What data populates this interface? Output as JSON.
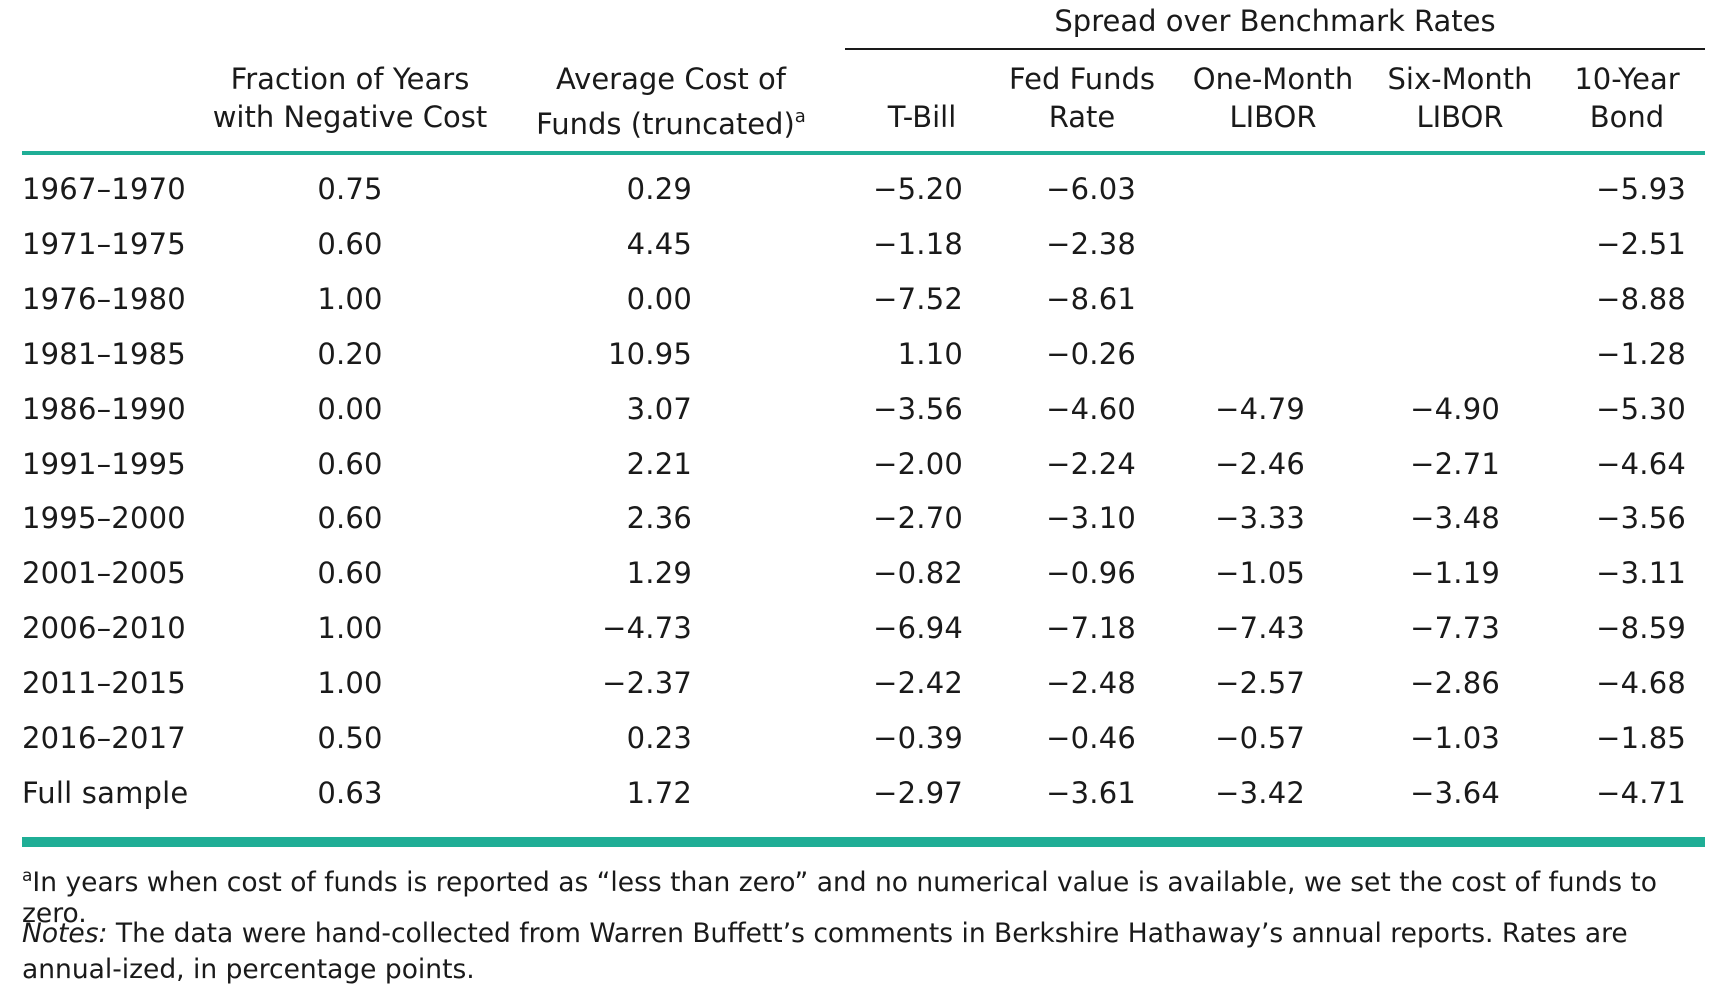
{
  "table": {
    "group_header": "Spread over Benchmark Rates",
    "columns": [
      {
        "line1": "Fraction of Years",
        "line2": "with Negative Cost"
      },
      {
        "line1": "Average Cost of",
        "line2": "Funds (truncated)",
        "sup": "a"
      },
      {
        "line1": "",
        "line2": "T-Bill"
      },
      {
        "line1": "Fed Funds",
        "line2": "Rate"
      },
      {
        "line1": "One-Month",
        "line2": "LIBOR"
      },
      {
        "line1": "Six-Month",
        "line2": "LIBOR"
      },
      {
        "line1": "10-Year",
        "line2": "Bond"
      }
    ],
    "rows": [
      [
        "1967–1970",
        "0.75",
        "0.29",
        "−5.20",
        "−6.03",
        "",
        "",
        "−5.93"
      ],
      [
        "1971–1975",
        "0.60",
        "4.45",
        "−1.18",
        "−2.38",
        "",
        "",
        "−2.51"
      ],
      [
        "1976–1980",
        "1.00",
        "0.00",
        "−7.52",
        "−8.61",
        "",
        "",
        "−8.88"
      ],
      [
        "1981–1985",
        "0.20",
        "10.95",
        "1.10",
        "−0.26",
        "",
        "",
        "−1.28"
      ],
      [
        "1986–1990",
        "0.00",
        "3.07",
        "−3.56",
        "−4.60",
        "−4.79",
        "−4.90",
        "−5.30"
      ],
      [
        "1991–1995",
        "0.60",
        "2.21",
        "−2.00",
        "−2.24",
        "−2.46",
        "−2.71",
        "−4.64"
      ],
      [
        "1995–2000",
        "0.60",
        "2.36",
        "−2.70",
        "−3.10",
        "−3.33",
        "−3.48",
        "−3.56"
      ],
      [
        "2001–2005",
        "0.60",
        "1.29",
        "−0.82",
        "−0.96",
        "−1.05",
        "−1.19",
        "−3.11"
      ],
      [
        "2006–2010",
        "1.00",
        "−4.73",
        "−6.94",
        "−7.18",
        "−7.43",
        "−7.73",
        "−8.59"
      ],
      [
        "2011–2015",
        "1.00",
        "−2.37",
        "−2.42",
        "−2.48",
        "−2.57",
        "−2.86",
        "−4.68"
      ],
      [
        "2016–2017",
        "0.50",
        "0.23",
        "−0.39",
        "−0.46",
        "−0.57",
        "−1.03",
        "−1.85"
      ],
      [
        "Full sample",
        "0.63",
        "1.72",
        "−2.97",
        "−3.61",
        "−3.42",
        "−3.64",
        "−4.71"
      ]
    ],
    "accent_color": "#1fae96"
  },
  "footnote": {
    "marker": "a",
    "text": "In years when cost of funds is reported as “less than zero” and no numerical value is available, we set the cost of funds to zero."
  },
  "notes": {
    "label": "Notes:",
    "text": " The data were hand-collected from Warren Buffett’s comments in Berkshire Hathaway’s annual reports. Rates are annual-ized, in percentage points."
  }
}
